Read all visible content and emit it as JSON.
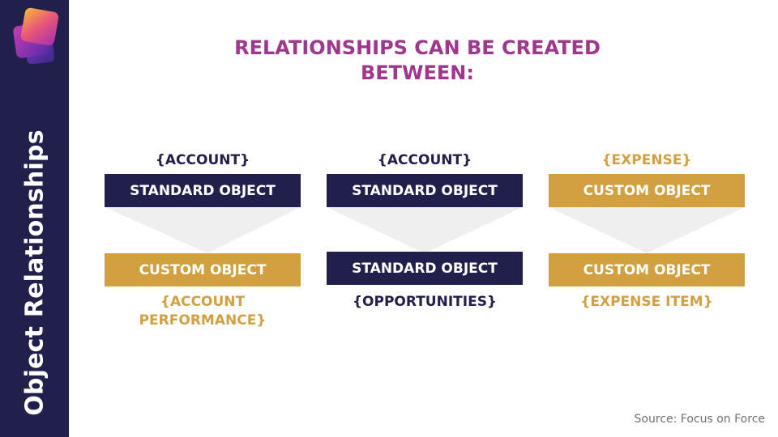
{
  "sidebar": {
    "title": "Object Relationships",
    "logo_icon": "layered-squares-logo",
    "background": "#211f4b"
  },
  "heading": {
    "line1": "RELATIONSHIPS CAN BE CREATED",
    "line2": "BETWEEN:",
    "color": "#a0368d"
  },
  "columns": [
    {
      "top_label": "{ACCOUNT}",
      "top_box": "STANDARD OBJECT",
      "bottom_box": "CUSTOM OBJECT",
      "bottom_label": "{ACCOUNT\nPERFORMANCE}"
    },
    {
      "top_label": "{ACCOUNT}",
      "top_box": "STANDARD OBJECT",
      "bottom_box": "STANDARD OBJECT",
      "bottom_label": "{OPPORTUNITIES}"
    },
    {
      "top_label": "{EXPENSE}",
      "top_box": "CUSTOM OBJECT",
      "bottom_box": "CUSTOM OBJECT",
      "bottom_label": "{EXPENSE ITEM}"
    }
  ],
  "colors": {
    "navy": "#211f4b",
    "gold": "#d3a03f"
  },
  "source": "Source: Focus on Force"
}
